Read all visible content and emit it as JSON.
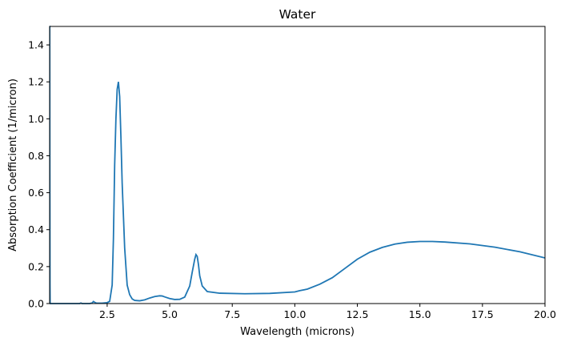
{
  "chart_data": {
    "type": "line",
    "title": "Water",
    "xlabel": "Wavelength (microns)",
    "ylabel": "Absorption Coefficient (1/micron)",
    "xlim": [
      0.2,
      20.0
    ],
    "ylim": [
      0.0,
      1.5
    ],
    "grid": false,
    "legend": "none",
    "xticks": [
      {
        "value": 2.5,
        "label": "2.5"
      },
      {
        "value": 5.0,
        "label": "5.0"
      },
      {
        "value": 7.5,
        "label": "7.5"
      },
      {
        "value": 10.0,
        "label": "10.0"
      },
      {
        "value": 12.5,
        "label": "12.5"
      },
      {
        "value": 15.0,
        "label": "15.0"
      },
      {
        "value": 17.5,
        "label": "17.5"
      },
      {
        "value": 20.0,
        "label": "20.0"
      }
    ],
    "yticks": [
      {
        "value": 0.0,
        "label": "0.0"
      },
      {
        "value": 0.2,
        "label": "0.2"
      },
      {
        "value": 0.4,
        "label": "0.4"
      },
      {
        "value": 0.6,
        "label": "0.6"
      },
      {
        "value": 0.8,
        "label": "0.8"
      },
      {
        "value": 1.0,
        "label": "1.0"
      },
      {
        "value": 1.2,
        "label": "1.2"
      },
      {
        "value": 1.4,
        "label": "1.4"
      }
    ],
    "series": [
      {
        "color": "#1f77b4",
        "x": [
          0.2,
          0.205,
          0.21,
          0.215,
          0.22,
          0.25,
          0.3,
          0.5,
          1.0,
          1.4,
          1.45,
          1.5,
          1.8,
          1.9,
          1.95,
          2.0,
          2.05,
          2.1,
          2.3,
          2.5,
          2.6,
          2.7,
          2.75,
          2.8,
          2.85,
          2.9,
          2.95,
          3.0,
          3.05,
          3.1,
          3.2,
          3.3,
          3.4,
          3.5,
          3.6,
          3.8,
          4.0,
          4.2,
          4.4,
          4.6,
          4.7,
          4.8,
          5.0,
          5.2,
          5.4,
          5.6,
          5.8,
          5.9,
          6.0,
          6.05,
          6.1,
          6.15,
          6.2,
          6.3,
          6.5,
          7.0,
          8.0,
          9.0,
          10.0,
          10.2,
          10.5,
          11.0,
          11.5,
          12.0,
          12.5,
          13.0,
          13.5,
          14.0,
          14.5,
          15.0,
          15.5,
          16.0,
          17.0,
          18.0,
          19.0,
          20.0
        ],
        "y": [
          1.5,
          1.5,
          0.7,
          0.1,
          0.0,
          0.0,
          0.0,
          0.0,
          0.0,
          0.0,
          0.003,
          0.0,
          0.0,
          0.003,
          0.011,
          0.007,
          0.003,
          0.002,
          0.002,
          0.005,
          0.012,
          0.1,
          0.35,
          0.75,
          1.0,
          1.16,
          1.2,
          1.12,
          0.9,
          0.65,
          0.3,
          0.1,
          0.048,
          0.025,
          0.017,
          0.015,
          0.02,
          0.03,
          0.038,
          0.042,
          0.041,
          0.036,
          0.027,
          0.022,
          0.023,
          0.035,
          0.095,
          0.17,
          0.24,
          0.265,
          0.255,
          0.21,
          0.15,
          0.095,
          0.065,
          0.056,
          0.053,
          0.055,
          0.063,
          0.07,
          0.078,
          0.105,
          0.14,
          0.19,
          0.24,
          0.278,
          0.304,
          0.322,
          0.332,
          0.336,
          0.336,
          0.333,
          0.323,
          0.305,
          0.28,
          0.247
        ]
      }
    ]
  }
}
